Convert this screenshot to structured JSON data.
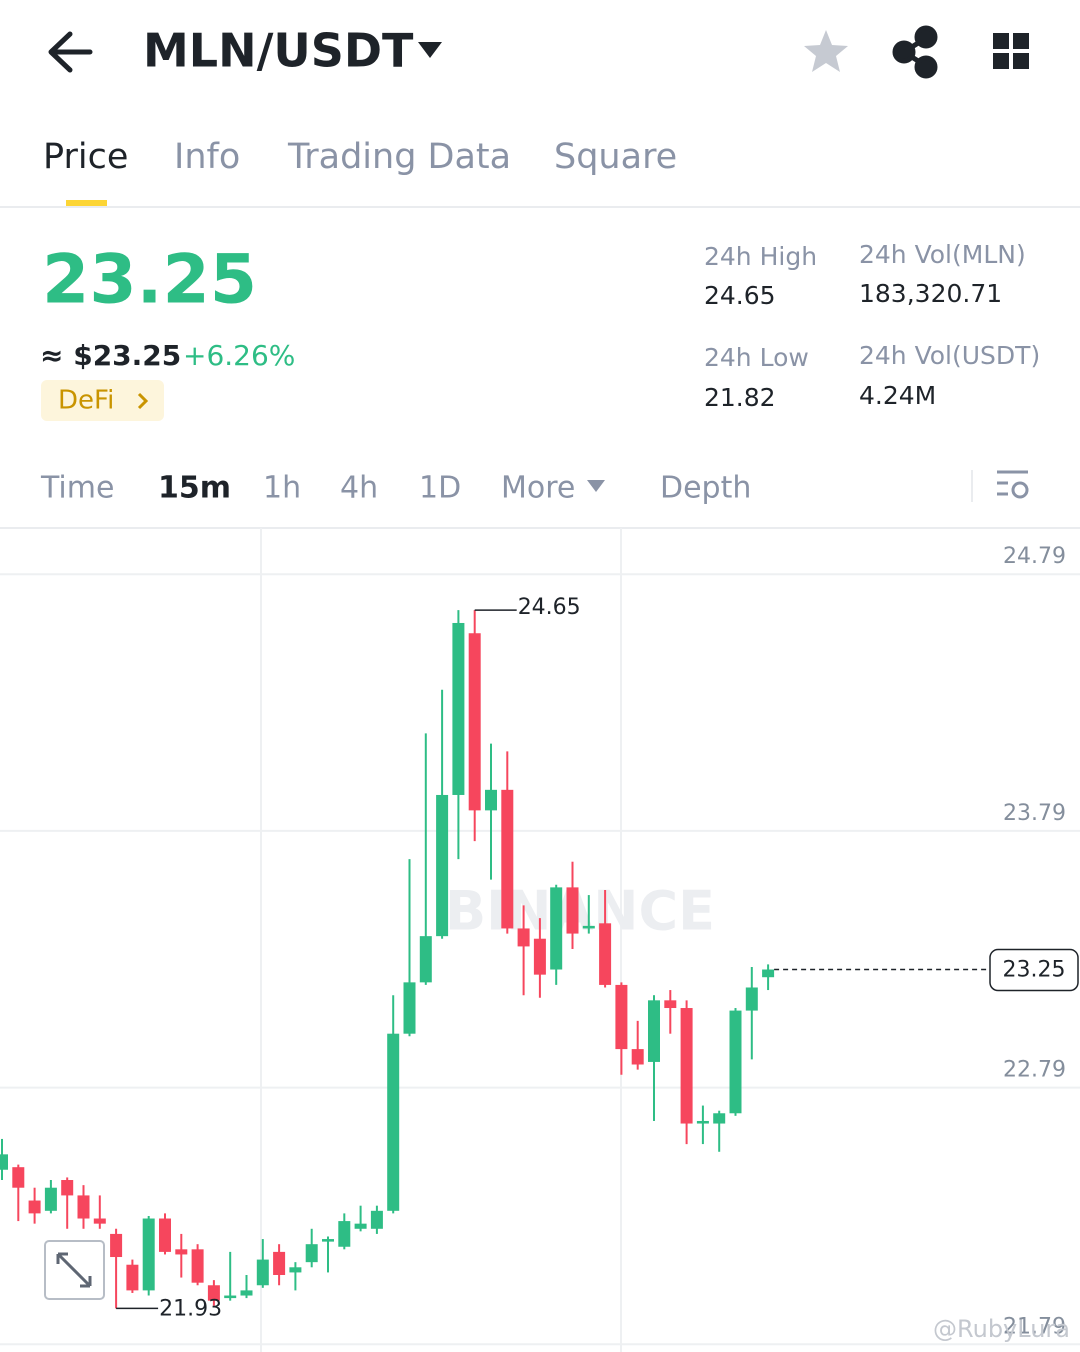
{
  "header": {
    "pair": "MLN/USDT"
  },
  "tabs": [
    "Price",
    "Info",
    "Trading Data",
    "Square"
  ],
  "ticker": {
    "price": "23.25",
    "usd_price": "≈ $23.25",
    "change": "+6.26%",
    "tag": "DeFi"
  },
  "stats": [
    {
      "label": "24h High",
      "value": "24.65"
    },
    {
      "label": "24h Vol(MLN)",
      "value": "183,320.71"
    },
    {
      "label": "24h Low",
      "value": "21.82"
    },
    {
      "label": "24h Vol(USDT)",
      "value": "4.24M"
    }
  ],
  "intervals": [
    "Time",
    "15m",
    "1h",
    "4h",
    "1D",
    "More",
    "Depth"
  ],
  "chart_data": {
    "type": "candlestick",
    "open": [
      22.47,
      22.48,
      22.35,
      22.31,
      22.43,
      22.37,
      22.28,
      22.22,
      22.1,
      22.0,
      22.28,
      22.16,
      22.16,
      22.02,
      21.97,
      21.98,
      22.02,
      22.15,
      22.07,
      22.11,
      22.19,
      22.17,
      22.24,
      22.24,
      22.31,
      23.0,
      23.2,
      23.38,
      23.93,
      24.56,
      23.87,
      23.95,
      23.41,
      23.37,
      23.25,
      23.57,
      23.41,
      23.43,
      23.19,
      22.94,
      22.89,
      23.13,
      23.1,
      22.65,
      22.65,
      22.69,
      23.09,
      23.22
    ],
    "high": [
      22.59,
      22.49,
      22.4,
      22.43,
      22.44,
      22.41,
      22.37,
      22.24,
      22.12,
      22.29,
      22.3,
      22.22,
      22.18,
      22.04,
      22.15,
      22.06,
      22.2,
      22.18,
      22.11,
      22.24,
      22.21,
      22.3,
      22.33,
      22.33,
      23.15,
      23.68,
      24.17,
      24.34,
      24.65,
      24.65,
      24.13,
      24.1,
      23.5,
      23.45,
      23.58,
      23.67,
      23.54,
      23.56,
      23.2,
      23.05,
      23.15,
      23.17,
      23.13,
      22.72,
      22.7,
      23.1,
      23.26,
      23.27
    ],
    "low": [
      22.43,
      22.27,
      22.26,
      22.3,
      22.24,
      22.24,
      22.24,
      21.93,
      21.99,
      21.98,
      22.14,
      22.05,
      22.02,
      21.94,
      21.96,
      21.97,
      22.01,
      22.02,
      22.0,
      22.09,
      22.07,
      22.16,
      22.23,
      22.22,
      22.3,
      22.99,
      23.19,
      23.37,
      23.68,
      23.75,
      23.6,
      23.39,
      23.15,
      23.14,
      23.19,
      23.33,
      23.39,
      23.18,
      22.84,
      22.86,
      22.66,
      23.0,
      22.57,
      22.57,
      22.54,
      22.68,
      22.9,
      23.17
    ],
    "close": [
      22.53,
      22.4,
      22.3,
      22.4,
      22.37,
      22.28,
      22.26,
      22.13,
      22.0,
      22.28,
      22.15,
      22.14,
      22.03,
      21.96,
      21.98,
      22.0,
      22.12,
      22.06,
      22.09,
      22.18,
      22.2,
      22.27,
      22.26,
      22.31,
      23.0,
      23.2,
      23.38,
      23.93,
      24.6,
      23.87,
      23.95,
      23.41,
      23.34,
      23.23,
      23.57,
      23.39,
      23.42,
      23.19,
      22.94,
      22.88,
      23.13,
      23.1,
      22.65,
      22.66,
      22.69,
      23.09,
      23.18,
      23.25
    ],
    "up_color": "#2ebd85",
    "down_color": "#f6465d",
    "ylim": [
      21.76,
      24.97
    ],
    "yticks": [
      24.79,
      23.79,
      22.79,
      21.79
    ],
    "grid": true,
    "high_label": 24.65,
    "low_label": 21.93,
    "last_price": 23.25,
    "watermark": "BINANCE"
  },
  "watermark": "@RubyLura"
}
